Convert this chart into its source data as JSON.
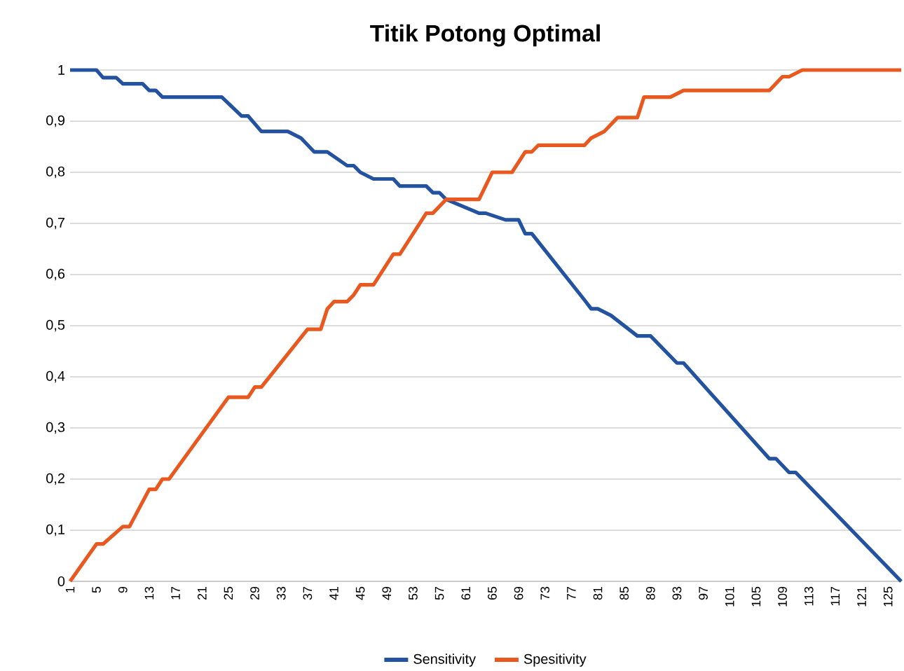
{
  "chart_data": {
    "type": "line",
    "title": "Titik Potong Optimal",
    "xlim": [
      1,
      127
    ],
    "xticks": [
      1,
      5,
      9,
      13,
      17,
      21,
      25,
      29,
      33,
      37,
      41,
      45,
      49,
      53,
      57,
      61,
      65,
      69,
      73,
      77,
      81,
      85,
      89,
      93,
      97,
      101,
      105,
      109,
      113,
      117,
      121,
      125
    ],
    "ylim": [
      0,
      1
    ],
    "yticks": [
      0,
      {
        "value": 0.1,
        "label": "0,1"
      },
      {
        "value": 0.2,
        "label": "0,2"
      },
      {
        "value": 0.3,
        "label": "0,3"
      },
      {
        "value": 0.4,
        "label": "0,4"
      },
      {
        "value": 0.5,
        "label": "0,5"
      },
      {
        "value": 0.6,
        "label": "0,6"
      },
      {
        "value": 0.7,
        "label": "0,7"
      },
      {
        "value": 0.8,
        "label": "0,8"
      },
      {
        "value": 0.9,
        "label": "0,9"
      },
      1
    ],
    "grid": "y",
    "legend": "bottom",
    "marker": "none",
    "line_style": "solid",
    "series": [
      {
        "name": "Sensitivity",
        "color": "#2352a0",
        "x": [
          1,
          5,
          6,
          8,
          9,
          12,
          13,
          14,
          15,
          24,
          27,
          28,
          30,
          34,
          36,
          38,
          40,
          43,
          44,
          45,
          47,
          50,
          51,
          55,
          56,
          57,
          58,
          63,
          64,
          67,
          69,
          70,
          71,
          79,
          80,
          81,
          83,
          87,
          89,
          93,
          94,
          107,
          108,
          110,
          111,
          127
        ],
        "values": [
          1,
          1,
          0.985,
          0.985,
          0.973,
          0.973,
          0.96,
          0.96,
          0.947,
          0.947,
          0.91,
          0.91,
          0.88,
          0.88,
          0.867,
          0.84,
          0.84,
          0.813,
          0.813,
          0.8,
          0.787,
          0.787,
          0.773,
          0.773,
          0.76,
          0.76,
          0.747,
          0.72,
          0.72,
          0.707,
          0.707,
          0.68,
          0.68,
          0.55,
          0.533,
          0.533,
          0.52,
          0.48,
          0.48,
          0.427,
          0.427,
          0.24,
          0.24,
          0.213,
          0.213,
          0
        ]
      },
      {
        "name": "Spesitivity",
        "color": "#e8581f",
        "x": [
          1,
          5,
          6,
          9,
          10,
          13,
          14,
          15,
          16,
          25,
          28,
          29,
          30,
          37,
          39,
          40,
          41,
          43,
          44,
          45,
          47,
          50,
          51,
          55,
          56,
          58,
          63,
          65,
          68,
          70,
          71,
          72,
          79,
          80,
          82,
          84,
          87,
          88,
          92,
          94,
          107,
          109,
          110,
          112,
          127
        ],
        "values": [
          0,
          0.073,
          0.073,
          0.107,
          0.107,
          0.18,
          0.18,
          0.2,
          0.2,
          0.36,
          0.36,
          0.38,
          0.38,
          0.493,
          0.493,
          0.533,
          0.547,
          0.547,
          0.56,
          0.58,
          0.58,
          0.64,
          0.64,
          0.72,
          0.72,
          0.747,
          0.747,
          0.8,
          0.8,
          0.84,
          0.84,
          0.853,
          0.853,
          0.867,
          0.88,
          0.907,
          0.907,
          0.947,
          0.947,
          0.96,
          0.96,
          0.987,
          0.987,
          1,
          1
        ]
      }
    ]
  }
}
